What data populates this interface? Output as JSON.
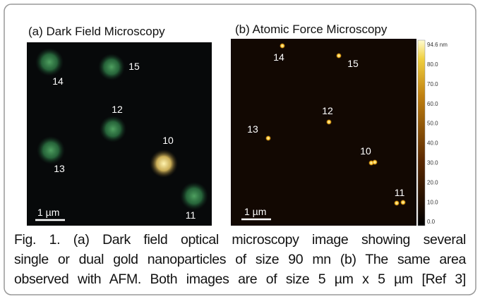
{
  "panels": [
    {
      "title": "(a) Dark Field Microscopy",
      "scale_bar": "1 µm",
      "particles": [
        "14",
        "15",
        "12",
        "13",
        "10",
        "11"
      ]
    },
    {
      "title": "(b) Atomic Force Microscopy",
      "scale_bar": "1 µm",
      "particles": [
        "14",
        "15",
        "12",
        "13",
        "10",
        "11"
      ],
      "colorbar": [
        "94.6 nm",
        "80.0",
        "70.0",
        "60.0",
        "50.0",
        "40.0",
        "30.0",
        "20.0",
        "10.0",
        "0.0"
      ]
    }
  ],
  "caption": {
    "lines": [
      "Fig. 1. (a) Dark field optical microscopy image showing several",
      "single or dual gold nanoparticles of size 90 mn (b) The same area",
      "observed with AFM. Both images are of size 5 µm x 5 µm [Ref 3]"
    ]
  }
}
